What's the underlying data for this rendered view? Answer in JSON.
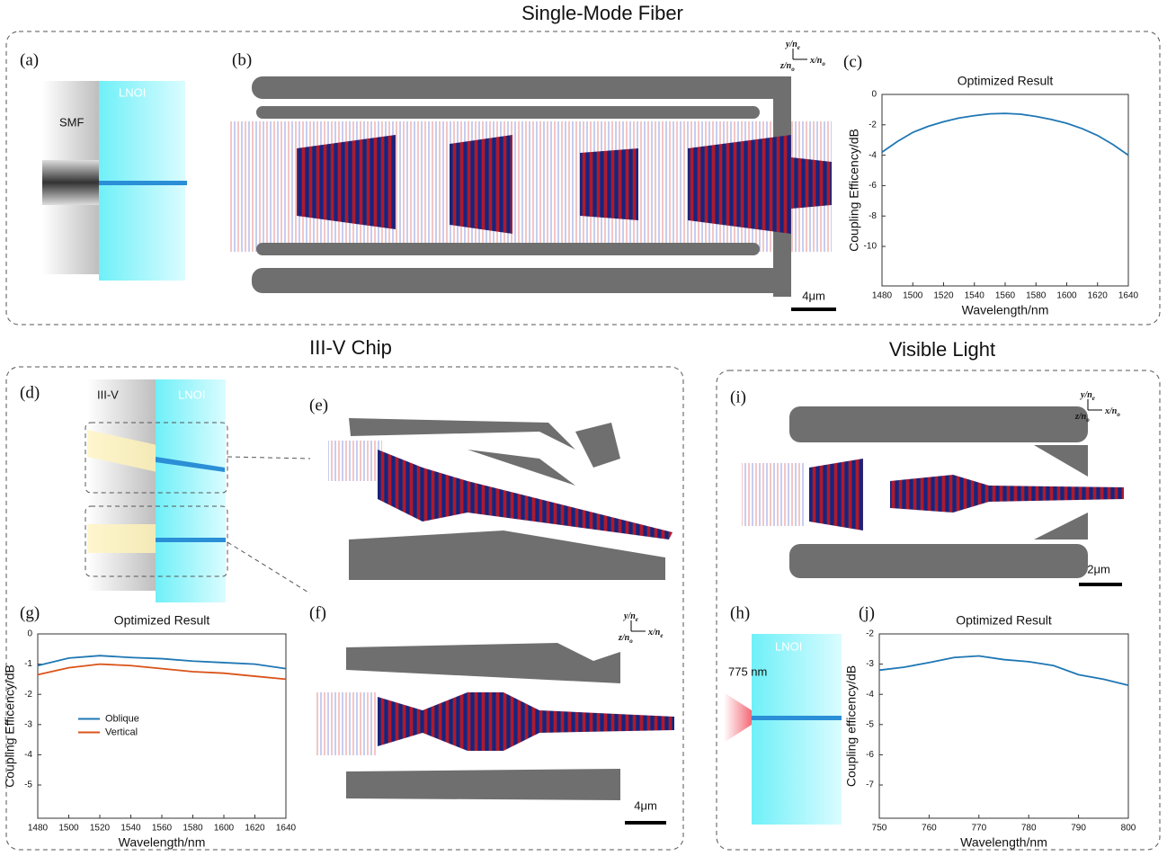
{
  "sections": [
    "Single-Mode Fiber",
    "III-V Chip",
    "Visible Light"
  ],
  "panel_labels": [
    "(a)",
    "(b)",
    "(c)",
    "(d)",
    "(e)",
    "(f)",
    "(g)",
    "(h)",
    "(i)",
    "(j)"
  ],
  "diagram_labels": {
    "smf": "SMF",
    "lnoi_a": "LNOI",
    "iii_v": "III-V",
    "lnoi_d": "LNOI",
    "source_h": "775 nm",
    "lnoi_h": "LNOI"
  },
  "scale_bars": [
    "4μm",
    "4μm",
    "2μm"
  ],
  "coord_axes": [
    {
      "y": "y/n",
      "y_sub": "e",
      "x": "x/n",
      "x_sub": "o",
      "z": "z/n",
      "z_sub": "o"
    },
    {
      "y": "y/n",
      "y_sub": "e",
      "x": "x/n",
      "x_sub": "e",
      "z": "z/n",
      "z_sub": "o"
    },
    {
      "y": "y/n",
      "y_sub": "e",
      "x": "x/n",
      "x_sub": "o",
      "z": "z/n",
      "z_sub": "o"
    }
  ],
  "chart_data": [
    {
      "type": "line",
      "title": "Optimized Result",
      "xlabel": "Wavelength/nm",
      "ylabel": "Coupling Efficency/dB",
      "x": [
        1480,
        1490,
        1500,
        1510,
        1520,
        1530,
        1540,
        1550,
        1560,
        1570,
        1580,
        1590,
        1600,
        1610,
        1620,
        1630,
        1640
      ],
      "series": [
        {
          "color": "#1f77b4",
          "values": [
            -3.8,
            -3.1,
            -2.5,
            -2.1,
            -1.8,
            -1.55,
            -1.4,
            -1.28,
            -1.25,
            -1.3,
            -1.45,
            -1.65,
            -1.9,
            -2.25,
            -2.7,
            -3.3,
            -4.0
          ]
        }
      ],
      "xlim": [
        1480,
        1640
      ],
      "ylim": [
        -12.6,
        0
      ],
      "xticks": [
        1480,
        1500,
        1520,
        1540,
        1560,
        1580,
        1600,
        1620,
        1640
      ],
      "yticks": [
        0,
        -2,
        -4,
        -6,
        -8,
        -10
      ]
    },
    {
      "type": "line",
      "title": "Optimized Result",
      "xlabel": "Wavelength/nm",
      "ylabel": "Coupling Efficency/dB",
      "x": [
        1480,
        1500,
        1520,
        1540,
        1560,
        1580,
        1600,
        1620,
        1640
      ],
      "series": [
        {
          "name": "Oblique",
          "color": "#1f77b4",
          "values": [
            -1.05,
            -0.8,
            -0.72,
            -0.78,
            -0.82,
            -0.9,
            -0.95,
            -1.0,
            -1.15
          ]
        },
        {
          "name": "Vertical",
          "color": "#d95319",
          "values": [
            -1.35,
            -1.12,
            -1.0,
            -1.05,
            -1.15,
            -1.25,
            -1.3,
            -1.4,
            -1.5
          ]
        }
      ],
      "legend": "center-left",
      "xlim": [
        1480,
        1640
      ],
      "ylim": [
        -6.1,
        0
      ],
      "xticks": [
        1480,
        1500,
        1520,
        1540,
        1560,
        1580,
        1600,
        1620,
        1640
      ],
      "yticks": [
        0,
        -1,
        -2,
        -3,
        -4,
        -5
      ]
    },
    {
      "type": "line",
      "title": "Optimized Result",
      "xlabel": "Wavelength/nm",
      "ylabel": "Coupling efficency/dB",
      "x": [
        750,
        755,
        760,
        765,
        770,
        775,
        780,
        785,
        790,
        795,
        800
      ],
      "series": [
        {
          "color": "#1f77b4",
          "values": [
            -3.2,
            -3.1,
            -2.95,
            -2.78,
            -2.73,
            -2.85,
            -2.92,
            -3.05,
            -3.35,
            -3.5,
            -3.7
          ]
        }
      ],
      "xlim": [
        750,
        800
      ],
      "ylim": [
        -8.1,
        -2
      ],
      "xticks": [
        750,
        760,
        770,
        780,
        790,
        800
      ],
      "yticks": [
        -2,
        -3,
        -4,
        -5,
        -6,
        -7
      ]
    }
  ]
}
